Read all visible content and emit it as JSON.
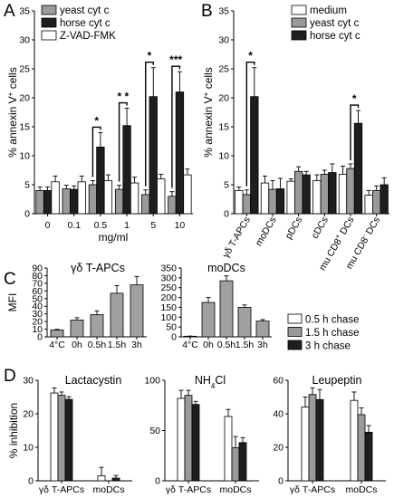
{
  "figure": {
    "panel_letters": [
      "A",
      "B",
      "C",
      "D"
    ]
  },
  "chart_data": [
    {
      "id": "A",
      "type": "bar",
      "title": "",
      "xlabel": "mg/ml",
      "ylabel": "% annexin V+ cells",
      "ylabel_parts": {
        "main": "% annexin V",
        "sup": "+",
        "tail": " cells"
      },
      "ylim": [
        0,
        35
      ],
      "yticks": [
        "0",
        "5",
        "10",
        "15",
        "20",
        "25",
        "30",
        "35"
      ],
      "categories": [
        "0",
        "0.1",
        "0.5",
        "1",
        "5",
        "10"
      ],
      "legend_position": "top-left",
      "series": [
        {
          "name": "yeast cyt c",
          "color": "#9a9a9a",
          "values": [
            4.0,
            4.3,
            5.0,
            4.2,
            3.3,
            3.0
          ],
          "errors": [
            0.6,
            0.6,
            0.7,
            0.7,
            0.8,
            0.8
          ]
        },
        {
          "name": "horse cyt c",
          "color": "#1e1e1e",
          "values": [
            4.0,
            4.2,
            11.5,
            15.2,
            20.2,
            21.0
          ],
          "errors": [
            0.6,
            0.6,
            2.5,
            3.0,
            5.0,
            3.5
          ]
        },
        {
          "name": "Z-VAD-FMK",
          "color": "#ffffff",
          "values": [
            5.5,
            5.5,
            5.7,
            5.3,
            6.0,
            6.7
          ],
          "errors": [
            1.0,
            1.0,
            1.0,
            1.0,
            0.8,
            1.0
          ]
        }
      ],
      "significance": [
        {
          "label": "*",
          "category": "0.5"
        },
        {
          "label": "* *",
          "category": "1"
        },
        {
          "label": "*",
          "category": "5"
        },
        {
          "label": "***",
          "category": "10"
        }
      ]
    },
    {
      "id": "B",
      "type": "bar",
      "title": "",
      "xlabel": "",
      "ylabel": "% annexin V+ cells",
      "ylabel_parts": {
        "main": "% annexin V",
        "sup": "+",
        "tail": " cells"
      },
      "ylim": [
        0,
        35
      ],
      "yticks": [
        "0",
        "5",
        "10",
        "15",
        "20",
        "25",
        "30",
        "35"
      ],
      "categories": [
        "γδ T-APCs",
        "moDCs",
        "pDCs",
        "cDCs",
        "mu CD8+ DCs",
        "mu CD8- DCs"
      ],
      "category_labels": [
        {
          "main": "γδ T-APCs",
          "sup": ""
        },
        {
          "main": "moDCs",
          "sup": ""
        },
        {
          "main": "pDCs",
          "sup": ""
        },
        {
          "main": "cDCs",
          "sup": ""
        },
        {
          "main": "mu CD8",
          "sup": "+",
          "tail": " DCs"
        },
        {
          "main": "mu CD8",
          "sup": "-",
          "tail": " DCs"
        }
      ],
      "legend_position": "top-right",
      "series": [
        {
          "name": "medium",
          "color": "#ffffff",
          "values": [
            4.0,
            5.3,
            5.6,
            5.7,
            6.8,
            3.2
          ],
          "errors": [
            0.6,
            1.2,
            0.4,
            1.0,
            1.4,
            0.8
          ]
        },
        {
          "name": "yeast cyt c",
          "color": "#9a9a9a",
          "values": [
            3.3,
            4.2,
            7.3,
            6.8,
            7.8,
            4.0
          ],
          "errors": [
            0.8,
            1.5,
            0.8,
            0.7,
            0.8,
            0.8
          ]
        },
        {
          "name": "horse cyt c",
          "color": "#1e1e1e",
          "values": [
            20.2,
            4.3,
            6.7,
            7.1,
            15.6,
            5.0
          ],
          "errors": [
            5.0,
            1.8,
            0.6,
            1.5,
            2.2,
            1.2
          ]
        }
      ],
      "significance": [
        {
          "label": "*",
          "category": "γδ T-APCs"
        },
        {
          "label": "*",
          "category": "mu CD8+ DCs"
        }
      ]
    },
    {
      "id": "C1",
      "type": "bar",
      "title": "γδ T-APCs",
      "xlabel": "",
      "ylabel": "MFI",
      "ylim": [
        0,
        90
      ],
      "yticks": [
        "0",
        "10",
        "20",
        "30",
        "40",
        "50",
        "60",
        "70",
        "80",
        "90"
      ],
      "categories": [
        "4°C",
        "0h",
        "0.5h",
        "1.5h",
        "3h"
      ],
      "series": [
        {
          "name": "",
          "color": "#a0a0a0",
          "values": [
            9,
            22,
            29,
            57,
            68
          ],
          "errors": [
            0.8,
            3,
            5,
            10,
            11
          ]
        }
      ]
    },
    {
      "id": "C2",
      "type": "bar",
      "title": "moDCs",
      "xlabel": "",
      "ylabel": "",
      "ylim": [
        0,
        350
      ],
      "yticks": [
        "0",
        "50",
        "100",
        "150",
        "200",
        "250",
        "300",
        "350"
      ],
      "categories": [
        "4°C",
        "0h",
        "0.5h",
        "1.5h",
        "3h"
      ],
      "series": [
        {
          "name": "",
          "color": "#a0a0a0",
          "values": [
            3,
            175,
            285,
            150,
            80
          ],
          "errors": [
            1,
            25,
            25,
            12,
            8
          ]
        }
      ]
    },
    {
      "id": "D-legend",
      "type": "bar",
      "title": "",
      "legend_position": "right",
      "series": [
        {
          "name": "0.5 h chase",
          "color": "#ffffff"
        },
        {
          "name": "1.5 h chase",
          "color": "#9a9a9a"
        },
        {
          "name": "3 h chase",
          "color": "#1e1e1e"
        }
      ]
    },
    {
      "id": "D1",
      "type": "bar",
      "title": "Lactacystin",
      "xlabel": "",
      "ylabel": "% inhibition",
      "ylim": [
        0,
        30
      ],
      "yticks": [
        "0",
        "10",
        "20",
        "30"
      ],
      "categories": [
        "γδ T-APCs",
        "moDCs"
      ],
      "series": [
        {
          "name": "0.5 h chase",
          "color": "#ffffff",
          "values": [
            26.2,
            1.5
          ],
          "errors": [
            1.5,
            2.5
          ]
        },
        {
          "name": "1.5 h chase",
          "color": "#9a9a9a",
          "values": [
            25.5,
            0
          ],
          "errors": [
            1.0,
            0
          ]
        },
        {
          "name": "3 h chase",
          "color": "#1e1e1e",
          "values": [
            24.3,
            0.8
          ],
          "errors": [
            0.8,
            0.8
          ]
        }
      ]
    },
    {
      "id": "D2",
      "type": "bar",
      "title": "NH4Cl",
      "title_parts": {
        "main": "NH",
        "sub": "4",
        "tail": "Cl"
      },
      "xlabel": "",
      "ylabel": "",
      "ylim": [
        0,
        100
      ],
      "yticks": [
        "0",
        "50",
        "100"
      ],
      "categories": [
        "γδ T-APCs",
        "moDCs"
      ],
      "series": [
        {
          "name": "0.5 h chase",
          "color": "#ffffff",
          "values": [
            82,
            64
          ],
          "errors": [
            8,
            7
          ]
        },
        {
          "name": "1.5 h chase",
          "color": "#9a9a9a",
          "values": [
            85,
            33
          ],
          "errors": [
            5,
            11
          ]
        },
        {
          "name": "3 h chase",
          "color": "#1e1e1e",
          "values": [
            76,
            38
          ],
          "errors": [
            3,
            5
          ]
        }
      ]
    },
    {
      "id": "D3",
      "type": "bar",
      "title": "Leupeptin",
      "xlabel": "",
      "ylabel": "",
      "ylim": [
        0,
        60
      ],
      "yticks": [
        "0",
        "20",
        "40",
        "60"
      ],
      "categories": [
        "γδ T-APCs",
        "moDCs"
      ],
      "series": [
        {
          "name": "0.5 h chase",
          "color": "#ffffff",
          "values": [
            44,
            48
          ],
          "errors": [
            6,
            5
          ]
        },
        {
          "name": "1.5 h chase",
          "color": "#9a9a9a",
          "values": [
            51.5,
            39.5
          ],
          "errors": [
            4,
            4
          ]
        },
        {
          "name": "3 h chase",
          "color": "#1e1e1e",
          "values": [
            48.5,
            29
          ],
          "errors": [
            6,
            4
          ]
        }
      ]
    }
  ]
}
